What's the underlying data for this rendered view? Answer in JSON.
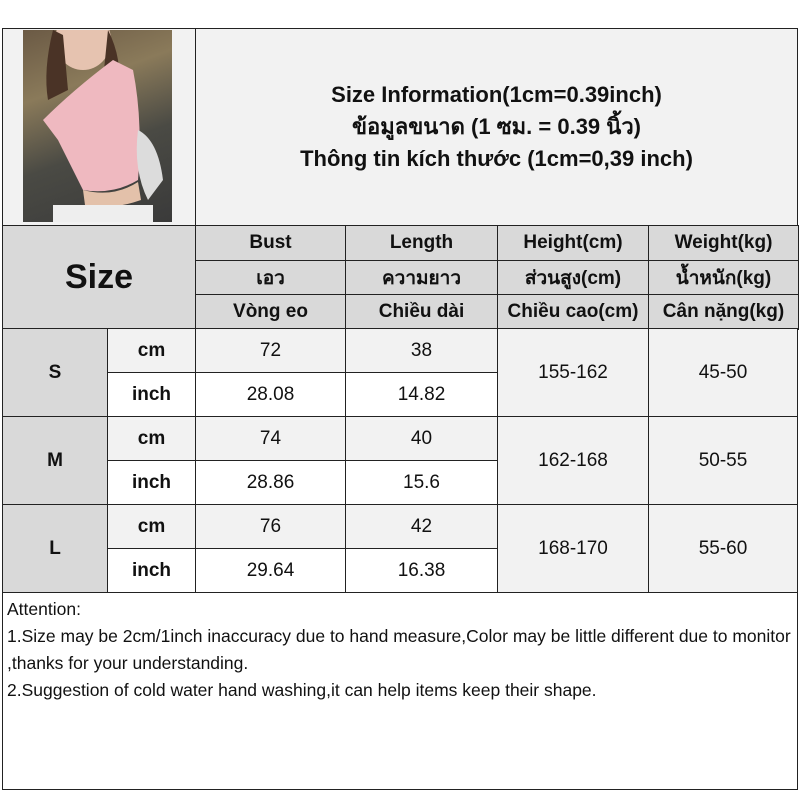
{
  "title": {
    "line1": "Size Information(1cm=0.39inch)",
    "line2": "ข้อมูลขนาด (1 ซม. = 0.39 นิ้ว)",
    "line3": "Thông tin kích thước (1cm=0,39 inch)"
  },
  "photo": {
    "alt": "product-photo"
  },
  "size_label": "Size",
  "headers": [
    {
      "en": "Bust",
      "th": "เอว",
      "vi": "Vòng eo"
    },
    {
      "en": "Length",
      "th": "ความยาว",
      "vi": "Chiều dài"
    },
    {
      "en": "Height(cm)",
      "th": "ส่วนสูง(cm)",
      "vi": "Chiều cao(cm)"
    },
    {
      "en": "Weight(kg)",
      "th": "น้ำหนัก(kg)",
      "vi": "Cân nặng(kg)"
    }
  ],
  "rows": [
    {
      "size": "S",
      "cm_label": "cm",
      "inch_label": "inch",
      "bust_cm": "72",
      "length_cm": "38",
      "bust_in": "28.08",
      "length_in": "14.82",
      "height": "155-162",
      "weight": "45-50"
    },
    {
      "size": "M",
      "cm_label": "cm",
      "inch_label": "inch",
      "bust_cm": "74",
      "length_cm": "40",
      "bust_in": "28.86",
      "length_in": "15.6",
      "height": "162-168",
      "weight": "50-55"
    },
    {
      "size": "L",
      "cm_label": "cm",
      "inch_label": "inch",
      "bust_cm": "76",
      "length_cm": "42",
      "bust_in": "29.64",
      "length_in": "16.38",
      "height": "168-170",
      "weight": "55-60"
    }
  ],
  "notes": [
    "Attention:",
    "1.Size may be 2cm/1inch inaccuracy due to hand measure,Color may be little different due to monitor ,thanks for your understanding.",
    "2.Suggestion of cold water hand washing,it can help items keep their shape."
  ],
  "colors": {
    "header_bg": "#d9d9d9",
    "light_bg": "#f2f2f2",
    "border": "#222222"
  }
}
